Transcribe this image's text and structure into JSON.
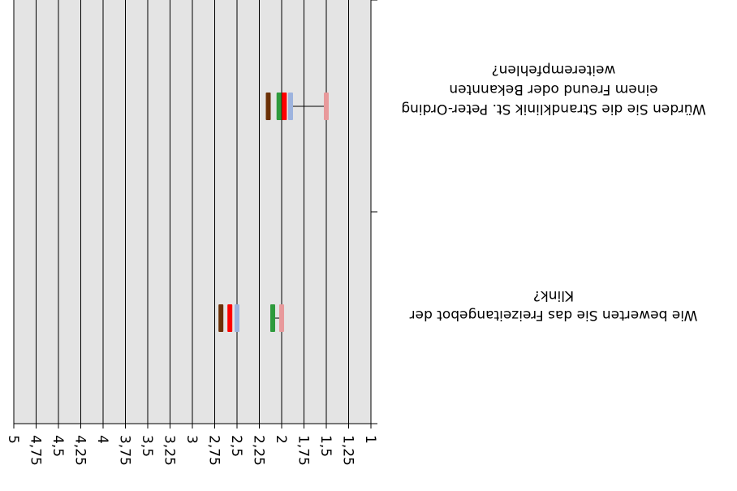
{
  "chart_data": {
    "type": "bar",
    "orientation": "horizontal",
    "rendered_upside_down": true,
    "x_axis": {
      "min": 1,
      "max": 5,
      "step": 0.25,
      "reversed": true,
      "tick_labels": [
        "1",
        "1,25",
        "1,5",
        "1,75",
        "2",
        "2,25",
        "2,5",
        "2,75",
        "3",
        "3,25",
        "3,5",
        "3,75",
        "4",
        "4,25",
        "4,5",
        "4,75",
        "5"
      ]
    },
    "grid": true,
    "categories": [
      {
        "label_lines": [
          "Wie bewerten Sie das Freizeitangebot der",
          "Klink?"
        ]
      },
      {
        "label_lines": [
          "Würden Sie die Strandklinik St. Peter-Ording",
          "einem Freund oder Bekannten",
          "weiterempfehlen?"
        ]
      }
    ],
    "series": [
      {
        "color": "#e8999b",
        "values": [
          2.0,
          1.5
        ]
      },
      {
        "color": "#9db3de",
        "values": [
          2.5,
          1.9
        ]
      },
      {
        "color": "#ff0000",
        "values": [
          2.58,
          1.97
        ]
      },
      {
        "color": "#2e9a3c",
        "values": [
          2.1,
          2.03
        ]
      },
      {
        "color": "#6b3006",
        "values": [
          2.68,
          2.15
        ]
      }
    ]
  }
}
